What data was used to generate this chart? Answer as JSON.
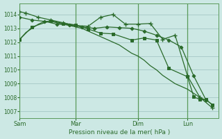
{
  "xlabel": "Pression niveau de la mer( hPa )",
  "bg_color": "#cce8e4",
  "grid_color": "#aaccca",
  "line_color": "#2a6a2a",
  "vline_color": "#5a9a5a",
  "ylim": [
    1006.5,
    1014.8
  ],
  "yticks": [
    1007,
    1008,
    1009,
    1010,
    1011,
    1012,
    1013,
    1014
  ],
  "xtick_labels": [
    "Sam",
    "Mar",
    "Dim",
    "Lun"
  ],
  "xtick_pos": [
    0,
    9,
    19,
    27
  ],
  "xlim": [
    0,
    32
  ],
  "series": [
    {
      "x": [
        0,
        1,
        2,
        3,
        4,
        5,
        6,
        7,
        8,
        9,
        10,
        11,
        12,
        13,
        14,
        15,
        16,
        17,
        18,
        19,
        20,
        21,
        22,
        23,
        24,
        25,
        26,
        27,
        28,
        29,
        30,
        31
      ],
      "y": [
        1012.2,
        1012.7,
        1013.0,
        1013.3,
        1013.5,
        1013.5,
        1013.4,
        1013.3,
        1013.2,
        1013.1,
        1013.0,
        1012.8,
        1012.6,
        1012.4,
        1012.2,
        1012.0,
        1011.8,
        1011.5,
        1011.2,
        1011.0,
        1010.7,
        1010.3,
        1010.0,
        1009.6,
        1009.3,
        1009.0,
        1008.8,
        1008.6,
        1008.3,
        1008.0,
        1007.8,
        1007.5
      ],
      "marker": null,
      "lw": 0.9
    },
    {
      "x": [
        0,
        1,
        3,
        5,
        7,
        9,
        11,
        13,
        15,
        17,
        19,
        21,
        23,
        25,
        27,
        29,
        31
      ],
      "y": [
        1014.2,
        1014.1,
        1013.8,
        1013.6,
        1013.4,
        1013.2,
        1013.15,
        1013.8,
        1014.0,
        1013.3,
        1013.3,
        1013.35,
        1012.2,
        1012.5,
        1009.55,
        1008.0,
        1007.25
      ],
      "marker": "+",
      "ms": 4,
      "lw": 0.9
    },
    {
      "x": [
        0,
        2,
        4,
        6,
        8,
        10,
        12,
        14,
        16,
        18,
        20,
        22,
        24,
        26,
        28,
        30
      ],
      "y": [
        1013.8,
        1013.6,
        1013.5,
        1013.3,
        1013.25,
        1013.1,
        1013.0,
        1013.1,
        1013.05,
        1013.0,
        1012.8,
        1012.5,
        1012.15,
        1011.65,
        1009.55,
        1007.8
      ],
      "marker": "D",
      "ms": 2.5,
      "lw": 0.9
    },
    {
      "x": [
        0,
        2,
        5,
        7,
        9,
        11,
        13,
        15,
        18,
        20,
        22,
        24,
        27,
        28,
        29,
        30,
        31
      ],
      "y": [
        1012.2,
        1013.1,
        1013.55,
        1013.35,
        1013.25,
        1012.95,
        1012.65,
        1012.6,
        1012.15,
        1012.3,
        1012.15,
        1010.1,
        1009.5,
        1008.05,
        1007.85,
        1007.85,
        1007.45
      ],
      "marker": "s",
      "ms": 2.5,
      "lw": 0.9
    }
  ]
}
